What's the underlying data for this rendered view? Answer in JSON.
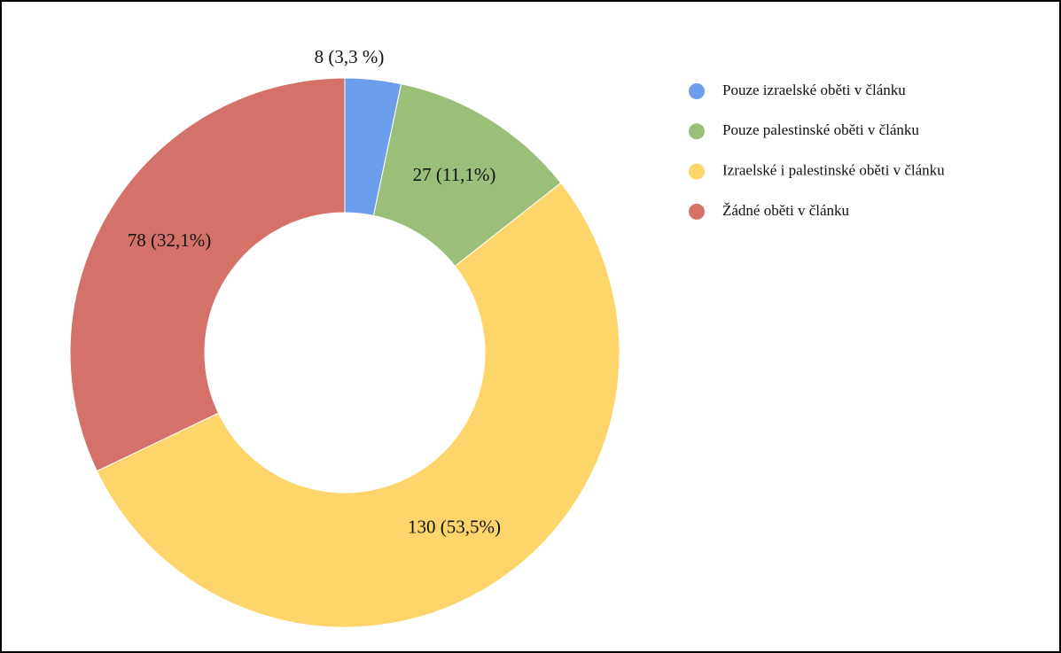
{
  "chart_data": {
    "type": "donut",
    "categories": [
      "Pouze izraelské oběti v článku",
      "Pouze palestinské oběti v článku",
      "Izraelské i palestinské oběti v článku",
      "Žádné oběti v článku"
    ],
    "values": [
      8,
      27,
      130,
      78
    ],
    "value_labels": [
      "8 (3,3 %)",
      "27 (11,1%)",
      "130 (53,5%)",
      "78 (32,1%)"
    ],
    "colors": [
      "#6d9eeb",
      "#9bbf78",
      "#fdd56b",
      "#d4726a"
    ],
    "legend": "right"
  }
}
